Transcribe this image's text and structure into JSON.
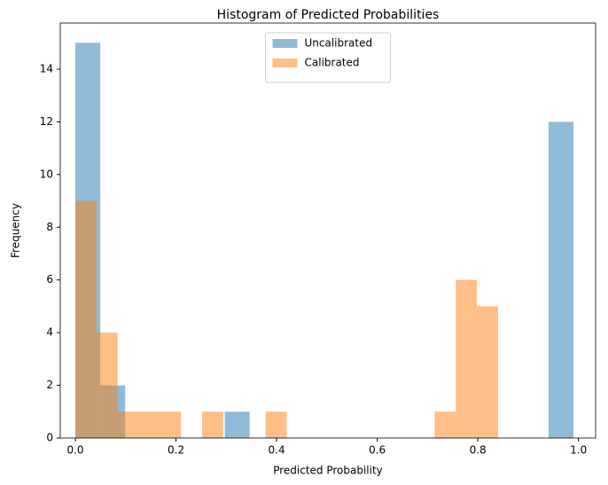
{
  "chart_data": {
    "type": "histogram",
    "title": "Histogram of Predicted Probabilities",
    "x_label": "Predicted Probability",
    "y_label": "Frequency",
    "xlim": [
      -0.03,
      1.034
    ],
    "ylim": [
      0,
      15.75
    ],
    "xticks": [
      {
        "value": 0,
        "label": "0.0"
      },
      0.2,
      0.4,
      0.6,
      0.8,
      {
        "value": 1,
        "label": "1.0"
      }
    ],
    "yticks": [
      0,
      2,
      4,
      6,
      8,
      10,
      12,
      14
    ],
    "legend": "upper center",
    "series": [
      {
        "name": "Uncalibrated",
        "color": "#1f77b4",
        "bins": [
          0,
          0.0495,
          0.099,
          0.1485,
          0.198,
          0.2475,
          0.297,
          0.3465,
          0.396,
          0.4455,
          0.495,
          0.5445,
          0.594,
          0.6435,
          0.693,
          0.7425,
          0.792,
          0.8415,
          0.891,
          0.9405,
          0.99
        ],
        "values": [
          15,
          2,
          0,
          0,
          0,
          0,
          1,
          0,
          0,
          0,
          0,
          0,
          0,
          0,
          0,
          0,
          0,
          0,
          0,
          12
        ]
      },
      {
        "name": "Calibrated",
        "color": "#ff7f0e",
        "bins": [
          0,
          0.042,
          0.084,
          0.126,
          0.168,
          0.21,
          0.252,
          0.294,
          0.336,
          0.378,
          0.42,
          0.462,
          0.504,
          0.546,
          0.588,
          0.63,
          0.672,
          0.714,
          0.756,
          0.798,
          0.84
        ],
        "values": [
          9,
          4,
          1,
          1,
          1,
          0,
          1,
          0,
          0,
          1,
          0,
          0,
          0,
          0,
          0,
          0,
          0,
          1,
          6,
          5
        ]
      }
    ]
  }
}
